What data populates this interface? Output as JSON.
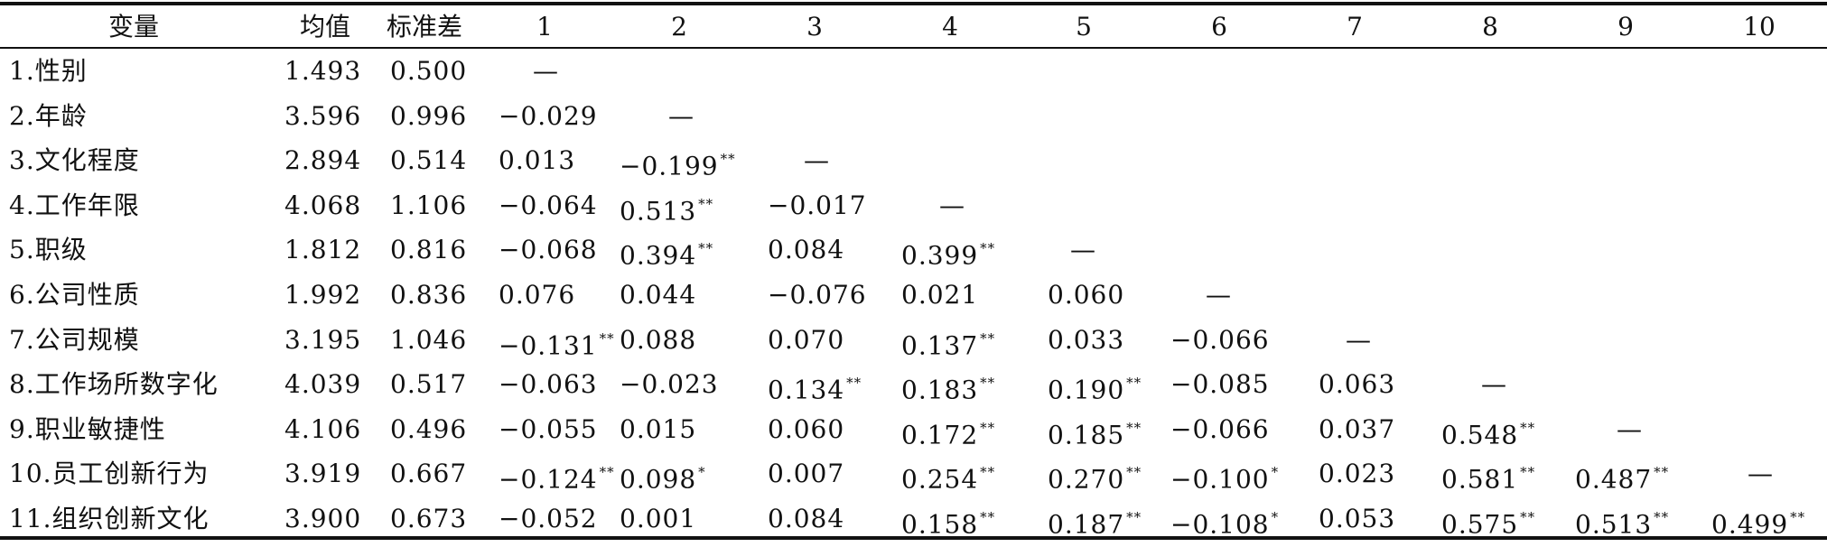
{
  "table": {
    "headers": [
      "变量",
      "均值",
      "标准差",
      "1",
      "2",
      "3",
      "4",
      "5",
      "6",
      "7",
      "8",
      "9",
      "10"
    ],
    "rows": [
      {
        "label": "1.性别",
        "mean": "1.493",
        "sd": "0.500",
        "corr": [
          {
            "v": "—",
            "s": ""
          }
        ]
      },
      {
        "label": "2.年龄",
        "mean": "3.596",
        "sd": "0.996",
        "corr": [
          {
            "v": "−0.029",
            "s": ""
          },
          {
            "v": "—",
            "s": ""
          }
        ]
      },
      {
        "label": "3.文化程度",
        "mean": "2.894",
        "sd": "0.514",
        "corr": [
          {
            "v": "0.013",
            "s": ""
          },
          {
            "v": "−0.199",
            "s": "**"
          },
          {
            "v": "—",
            "s": ""
          }
        ]
      },
      {
        "label": "4.工作年限",
        "mean": "4.068",
        "sd": "1.106",
        "corr": [
          {
            "v": "−0.064",
            "s": ""
          },
          {
            "v": "0.513",
            "s": "**"
          },
          {
            "v": "−0.017",
            "s": ""
          },
          {
            "v": "—",
            "s": ""
          }
        ]
      },
      {
        "label": "5.职级",
        "mean": "1.812",
        "sd": "0.816",
        "corr": [
          {
            "v": "−0.068",
            "s": ""
          },
          {
            "v": "0.394",
            "s": "**"
          },
          {
            "v": "0.084",
            "s": ""
          },
          {
            "v": "0.399",
            "s": "**"
          },
          {
            "v": "—",
            "s": ""
          }
        ]
      },
      {
        "label": "6.公司性质",
        "mean": "1.992",
        "sd": "0.836",
        "corr": [
          {
            "v": "0.076",
            "s": ""
          },
          {
            "v": "0.044",
            "s": ""
          },
          {
            "v": "−0.076",
            "s": ""
          },
          {
            "v": "0.021",
            "s": ""
          },
          {
            "v": "0.060",
            "s": ""
          },
          {
            "v": "—",
            "s": ""
          }
        ]
      },
      {
        "label": "7.公司规模",
        "mean": "3.195",
        "sd": "1.046",
        "corr": [
          {
            "v": "−0.131",
            "s": "**"
          },
          {
            "v": "0.088",
            "s": ""
          },
          {
            "v": "0.070",
            "s": ""
          },
          {
            "v": "0.137",
            "s": "**"
          },
          {
            "v": "0.033",
            "s": ""
          },
          {
            "v": "−0.066",
            "s": ""
          },
          {
            "v": "—",
            "s": ""
          }
        ]
      },
      {
        "label": "8.工作场所数字化",
        "mean": "4.039",
        "sd": "0.517",
        "corr": [
          {
            "v": "−0.063",
            "s": ""
          },
          {
            "v": "−0.023",
            "s": ""
          },
          {
            "v": "0.134",
            "s": "**"
          },
          {
            "v": "0.183",
            "s": "**"
          },
          {
            "v": "0.190",
            "s": "**"
          },
          {
            "v": "−0.085",
            "s": ""
          },
          {
            "v": "0.063",
            "s": ""
          },
          {
            "v": "—",
            "s": ""
          }
        ]
      },
      {
        "label": "9.职业敏捷性",
        "mean": "4.106",
        "sd": "0.496",
        "corr": [
          {
            "v": "−0.055",
            "s": ""
          },
          {
            "v": "0.015",
            "s": ""
          },
          {
            "v": "0.060",
            "s": ""
          },
          {
            "v": "0.172",
            "s": "**"
          },
          {
            "v": "0.185",
            "s": "**"
          },
          {
            "v": "−0.066",
            "s": ""
          },
          {
            "v": "0.037",
            "s": ""
          },
          {
            "v": "0.548",
            "s": "**"
          },
          {
            "v": "—",
            "s": ""
          }
        ]
      },
      {
        "label": "10.员工创新行为",
        "mean": "3.919",
        "sd": "0.667",
        "corr": [
          {
            "v": "−0.124",
            "s": "**"
          },
          {
            "v": "0.098",
            "s": "*"
          },
          {
            "v": "0.007",
            "s": ""
          },
          {
            "v": "0.254",
            "s": "**"
          },
          {
            "v": "0.270",
            "s": "**"
          },
          {
            "v": "−0.100",
            "s": "*"
          },
          {
            "v": "0.023",
            "s": ""
          },
          {
            "v": "0.581",
            "s": "**"
          },
          {
            "v": "0.487",
            "s": "**"
          },
          {
            "v": "—",
            "s": ""
          }
        ]
      },
      {
        "label": "11.组织创新文化",
        "mean": "3.900",
        "sd": "0.673",
        "corr": [
          {
            "v": "−0.052",
            "s": ""
          },
          {
            "v": "0.001",
            "s": ""
          },
          {
            "v": "0.084",
            "s": ""
          },
          {
            "v": "0.158",
            "s": "**"
          },
          {
            "v": "0.187",
            "s": "**"
          },
          {
            "v": "−0.108",
            "s": "*"
          },
          {
            "v": "0.053",
            "s": ""
          },
          {
            "v": "0.575",
            "s": "**"
          },
          {
            "v": "0.513",
            "s": "**"
          },
          {
            "v": "0.499",
            "s": "**"
          }
        ]
      }
    ]
  }
}
